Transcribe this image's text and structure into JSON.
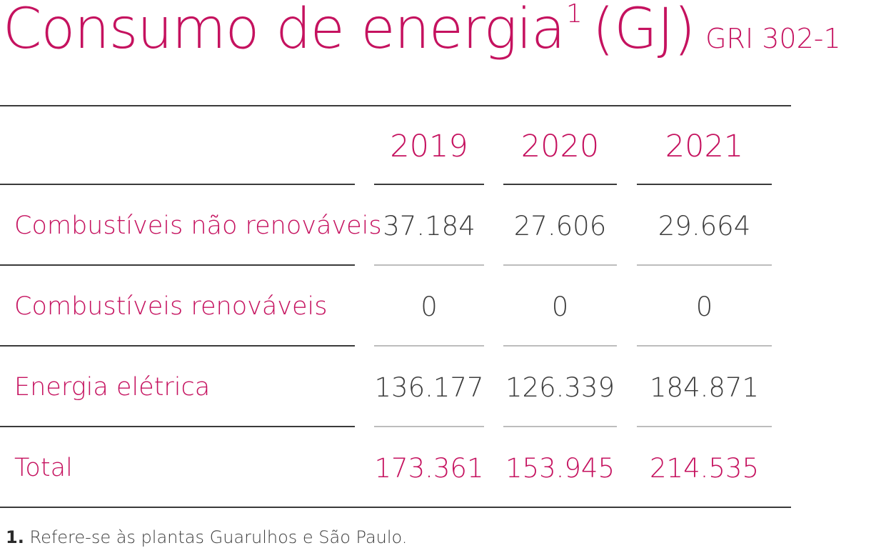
{
  "title": {
    "main": "Consumo de energia",
    "superscript": "1",
    "unit": "(GJ)",
    "gri": "GRI 302-1"
  },
  "table": {
    "years": [
      "2019",
      "2020",
      "2021"
    ],
    "rows": [
      {
        "label": "Combustíveis não renováveis",
        "values": [
          "37.184",
          "27.606",
          "29.664"
        ]
      },
      {
        "label": "Combustíveis renováveis",
        "values": [
          "0",
          "0",
          "0"
        ]
      },
      {
        "label": "Energia elétrica",
        "values": [
          "136.177",
          "126.339",
          "184.871"
        ]
      },
      {
        "label": "Total",
        "values": [
          "173.361",
          "153.945",
          "214.535"
        ]
      }
    ]
  },
  "footnote": {
    "number": "1.",
    "text": "Refere-se às plantas Guarulhos e São Paulo."
  },
  "colors": {
    "accent": "#c5125f",
    "text": "#3d3d3d",
    "rule_dark": "#3a3a3a",
    "rule_light": "#bdbdbd"
  }
}
